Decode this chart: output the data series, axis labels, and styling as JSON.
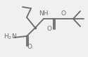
{
  "bg_color": "#f0f0f0",
  "bond_color": "#6a6a6a",
  "text_color": "#6a6a6a",
  "line_width": 1.3,
  "font_size": 6.5,
  "figsize": [
    1.25,
    0.82
  ],
  "dpi": 100,
  "xlim": [
    0.0,
    1.25
  ],
  "ylim": [
    0.0,
    0.82
  ]
}
